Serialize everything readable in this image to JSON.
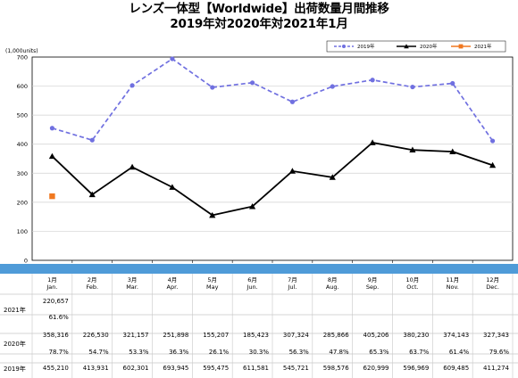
{
  "title": {
    "line1": "レンズ一体型【Worldwide】出荷数量月間推移",
    "line2": "2019年対2020年対2021年1月"
  },
  "chart_data": {
    "type": "line",
    "unit_label": "(1,000units)",
    "ylim": [
      0,
      700
    ],
    "yticks": [
      "0",
      "100",
      "200",
      "300",
      "400",
      "500",
      "600",
      "700"
    ],
    "categories": [
      "1月 Jan.",
      "2月 Feb.",
      "3月 Mar.",
      "4月 Apr.",
      "5月 May",
      "6月 Jun.",
      "7月 Jul.",
      "8月 Aug.",
      "9月 Sep.",
      "10月 Oct.",
      "11月 Nov.",
      "12月 Dec."
    ],
    "grid": true,
    "legend_position": "top-right",
    "series": [
      {
        "name": "2019年",
        "color": "#7070e0",
        "style": "dashed",
        "marker": "circle",
        "values": [
          455.21,
          413.931,
          602.301,
          693.945,
          595.475,
          611.581,
          545.721,
          598.576,
          620.999,
          596.969,
          609.485,
          411.274
        ]
      },
      {
        "name": "2020年",
        "color": "#000000",
        "style": "solid",
        "marker": "triangle",
        "values": [
          358.316,
          226.53,
          321.157,
          251.898,
          155.207,
          185.423,
          307.324,
          285.866,
          405.206,
          380.23,
          374.143,
          327.343
        ]
      },
      {
        "name": "2021年",
        "color": "#f07820",
        "style": "solid",
        "marker": "square",
        "values": [
          220.657,
          null,
          null,
          null,
          null,
          null,
          null,
          null,
          null,
          null,
          null,
          null
        ]
      }
    ]
  },
  "table": {
    "months": [
      {
        "jp": "1月",
        "en": "Jan."
      },
      {
        "jp": "2月",
        "en": "Feb."
      },
      {
        "jp": "3月",
        "en": "Mar."
      },
      {
        "jp": "4月",
        "en": "Apr."
      },
      {
        "jp": "5月",
        "en": "May"
      },
      {
        "jp": "6月",
        "en": "Jun."
      },
      {
        "jp": "7月",
        "en": "Jul."
      },
      {
        "jp": "8月",
        "en": "Aug."
      },
      {
        "jp": "9月",
        "en": "Sep."
      },
      {
        "jp": "10月",
        "en": "Oct."
      },
      {
        "jp": "11月",
        "en": "Nov."
      },
      {
        "jp": "12月",
        "en": "Dec."
      }
    ],
    "rows": [
      {
        "label": "2021年",
        "values": [
          "220,657",
          "",
          "",
          "",
          "",
          "",
          "",
          "",
          "",
          "",
          "",
          ""
        ],
        "ratios": [
          "61.6%",
          "",
          "",
          "",
          "",
          "",
          "",
          "",
          "",
          "",
          "",
          ""
        ]
      },
      {
        "label": "2020年",
        "values": [
          "358,316",
          "226,530",
          "321,157",
          "251,898",
          "155,207",
          "185,423",
          "307,324",
          "285,866",
          "405,206",
          "380,230",
          "374,143",
          "327,343"
        ],
        "ratios": [
          "78.7%",
          "54.7%",
          "53.3%",
          "36.3%",
          "26.1%",
          "30.3%",
          "56.3%",
          "47.8%",
          "65.3%",
          "63.7%",
          "61.4%",
          "79.6%"
        ]
      },
      {
        "label": "2019年",
        "values": [
          "455,210",
          "413,931",
          "602,301",
          "693,945",
          "595,475",
          "611,581",
          "545,721",
          "598,576",
          "620,999",
          "596,969",
          "609,485",
          "411,274"
        ]
      }
    ]
  }
}
